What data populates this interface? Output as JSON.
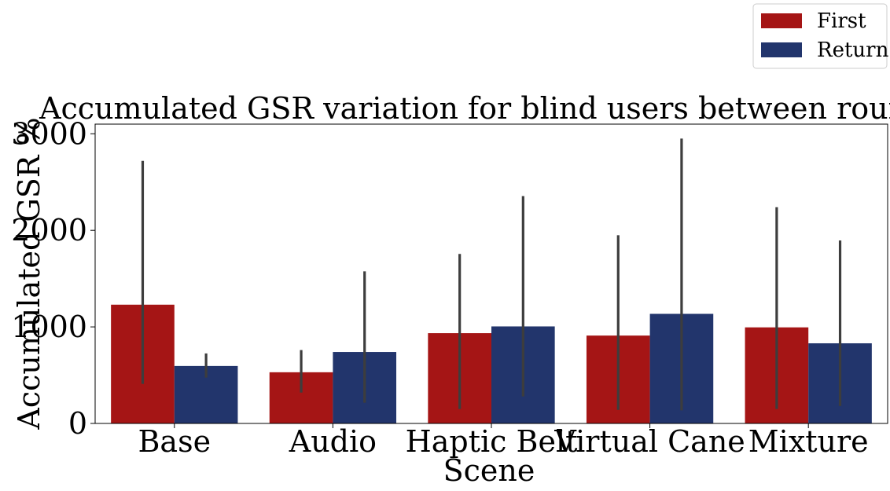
{
  "chart_data": {
    "type": "bar",
    "title": "Accumulated GSR variation for blind users between rounds",
    "xlabel": "Scene",
    "ylabel": "Accumulated GSR %",
    "categories": [
      "Base",
      "Audio",
      "Haptic Belt",
      "Virtual Cane",
      "Mixture"
    ],
    "ylim": [
      0,
      3100
    ],
    "yticks": [
      0,
      1000,
      2000,
      3000
    ],
    "grid": false,
    "legend_position": "top-right",
    "series": [
      {
        "name": "First",
        "color": "#a51515",
        "values": [
          1230,
          530,
          935,
          910,
          995
        ],
        "error_low": [
          410,
          320,
          150,
          140,
          150
        ],
        "error_high": [
          2720,
          760,
          1755,
          1950,
          2240
        ]
      },
      {
        "name": "Return",
        "color": "#22356c",
        "values": [
          595,
          740,
          1005,
          1135,
          830
        ],
        "error_low": [
          475,
          215,
          280,
          135,
          180
        ],
        "error_high": [
          725,
          1575,
          2355,
          2950,
          1895
        ]
      }
    ],
    "errorbar_color": "#3d3d3d"
  }
}
